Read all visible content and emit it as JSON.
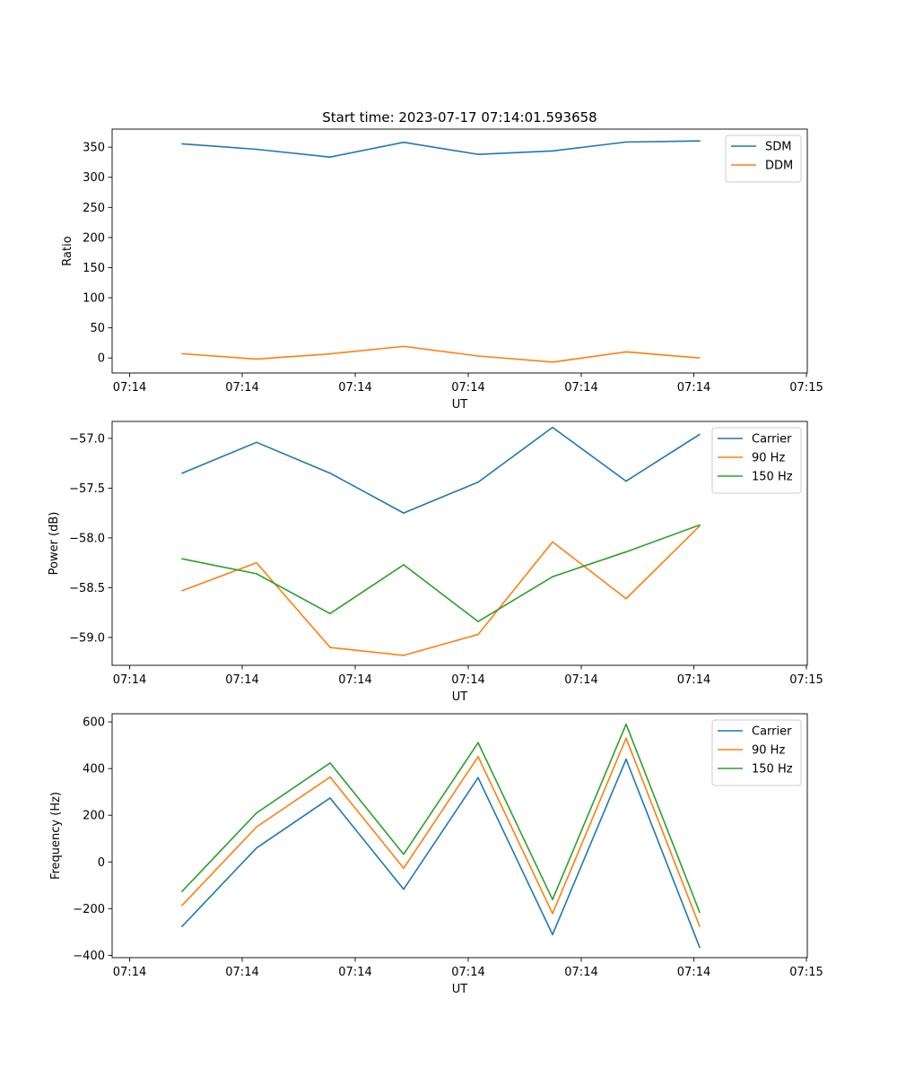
{
  "figure_title": "Start time: 2023-07-17 07:14:01.593658",
  "colors": {
    "blue": "#1f77b4",
    "orange": "#ff7f0e",
    "green": "#2ca02c"
  },
  "chart_data": [
    {
      "type": "line",
      "title": "Start time: 2023-07-17 07:14:01.593658",
      "xlabel": "UT",
      "ylabel": "Ratio",
      "x_tick_labels": [
        "07:14",
        "07:14",
        "07:14",
        "07:14",
        "07:14",
        "07:14",
        "07:15"
      ],
      "ylim": [
        -25,
        380
      ],
      "yticks": [
        0,
        50,
        100,
        150,
        200,
        250,
        300,
        350
      ],
      "y_tick_labels": [
        "0",
        "50",
        "100",
        "150",
        "200",
        "250",
        "300",
        "350"
      ],
      "legend": "top-right",
      "series": [
        {
          "name": "SDM",
          "color": "#1f77b4",
          "values": [
            355.6,
            346.5,
            333.6,
            358.1,
            338.1,
            343.8,
            358.6,
            360.4
          ]
        },
        {
          "name": "DDM",
          "color": "#ff7f0e",
          "values": [
            7.0,
            -1.8,
            6.8,
            19.3,
            3.3,
            -6.9,
            10.1,
            0.0
          ]
        }
      ]
    },
    {
      "type": "line",
      "xlabel": "UT",
      "ylabel": "Power (dB)",
      "x_tick_labels": [
        "07:14",
        "07:14",
        "07:14",
        "07:14",
        "07:14",
        "07:14",
        "07:15"
      ],
      "ylim": [
        -59.28,
        -56.83
      ],
      "yticks": [
        -59.0,
        -58.5,
        -58.0,
        -57.5,
        -57.0
      ],
      "y_tick_labels": [
        "−59.0",
        "−58.5",
        "−58.0",
        "−57.5",
        "−57.0"
      ],
      "legend": "top-right",
      "series": [
        {
          "name": "Carrier",
          "color": "#1f77b4",
          "values": [
            -57.35,
            -57.04,
            -57.35,
            -57.75,
            -57.44,
            -56.89,
            -57.43,
            -56.96
          ]
        },
        {
          "name": "90 Hz",
          "color": "#ff7f0e",
          "values": [
            -58.53,
            -58.25,
            -59.1,
            -59.18,
            -58.97,
            -58.04,
            -58.61,
            -57.88
          ]
        },
        {
          "name": "150 Hz",
          "color": "#2ca02c",
          "values": [
            -58.21,
            -58.36,
            -58.76,
            -58.27,
            -58.84,
            -58.39,
            -58.14,
            -57.87
          ]
        }
      ]
    },
    {
      "type": "line",
      "xlabel": "UT",
      "ylabel": "Frequency (Hz)",
      "x_tick_labels": [
        "07:14",
        "07:14",
        "07:14",
        "07:14",
        "07:14",
        "07:14",
        "07:15"
      ],
      "ylim": [
        -410,
        635
      ],
      "yticks": [
        -400,
        -200,
        0,
        200,
        400,
        600
      ],
      "y_tick_labels": [
        "−400",
        "−200",
        "0",
        "200",
        "400",
        "600"
      ],
      "legend": "top-right",
      "series": [
        {
          "name": "Carrier",
          "color": "#1f77b4",
          "values": [
            -276,
            60,
            274,
            -117,
            361,
            -311,
            440,
            -366
          ]
        },
        {
          "name": "90 Hz",
          "color": "#ff7f0e",
          "values": [
            -186,
            150,
            364,
            -27,
            451,
            -221,
            530,
            -276
          ]
        },
        {
          "name": "150 Hz",
          "color": "#2ca02c",
          "values": [
            -126,
            210,
            424,
            33,
            511,
            -161,
            590,
            -216
          ]
        }
      ]
    }
  ]
}
